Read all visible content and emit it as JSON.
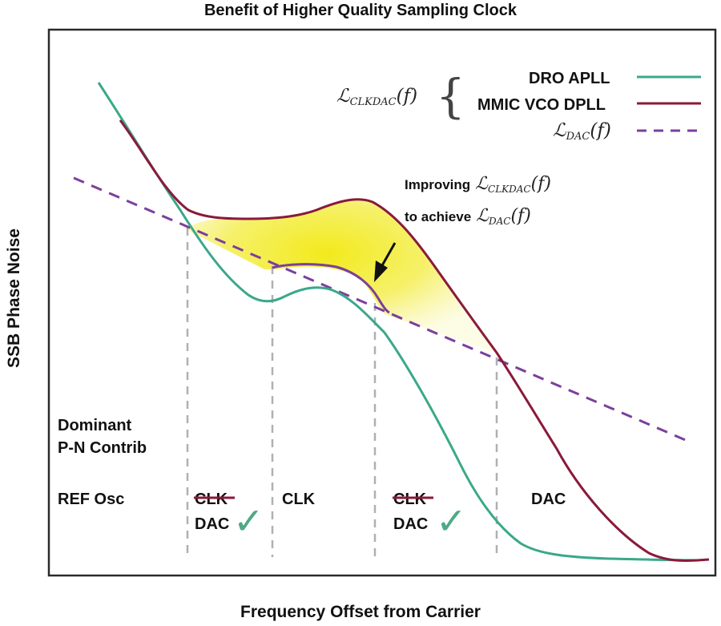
{
  "title": "Benefit of Higher Quality Sampling Clock",
  "xlabel": "Frequency Offset from Carrier",
  "ylabel": "SSB Phase Noise",
  "legend": {
    "group_symbol": "ℒ",
    "group_subscript": "CLKDAC",
    "group_arg": "(f)",
    "items": [
      {
        "label": "DRO APLL",
        "color": "#3aa88a",
        "style": "solid"
      },
      {
        "label": "MMIC VCO DPLL",
        "color": "#8a1a3a",
        "style": "solid"
      },
      {
        "symbol": "ℒ",
        "subscript": "DAC",
        "arg": "(f)",
        "color": "#7b3f9c",
        "style": "dashed"
      }
    ]
  },
  "annotation": {
    "line1_text": "Improving",
    "line1_symbol": "ℒ",
    "line1_subscript": "CLKDAC",
    "line1_arg": "(f)",
    "line2_text": "to achieve",
    "line2_symbol": "ℒ",
    "line2_subscript": "DAC",
    "line2_arg": "(f)"
  },
  "dominant_label": [
    "Dominant",
    "P-N Contrib"
  ],
  "regions": [
    {
      "top": "REF Osc"
    },
    {
      "struck": "CLK",
      "bottom": "DAC",
      "check": "✓"
    },
    {
      "top": "CLK"
    },
    {
      "struck": "CLK",
      "bottom": "DAC",
      "check": "✓"
    },
    {
      "top": "DAC"
    }
  ],
  "colors": {
    "apll": "#3aa88a",
    "dpll": "#8a1a3a",
    "dac": "#7b3f9c",
    "highlight": "#f2ea1a",
    "grid": "#b0b0b0",
    "check": "#4daa86",
    "strike": "#8a1a3a"
  }
}
